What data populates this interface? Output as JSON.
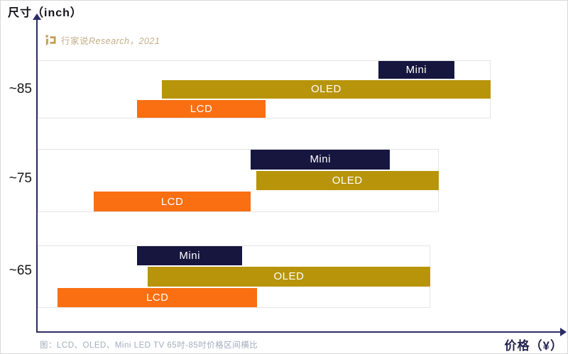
{
  "y_axis_title": "尺寸（inch）",
  "x_axis_title": "价格（¥）",
  "watermark": {
    "brand": "行家说",
    "suffix": "Research，2021"
  },
  "caption": "图：LCD、OLED、Mini LED TV 65吋-85吋价格区间横比",
  "colors": {
    "mini": "#16163f",
    "oled": "#b7940a",
    "lcd": "#f96f12",
    "axis": "#2c2c63",
    "watermark_gold": "#c59f55"
  },
  "chart_data": {
    "type": "bar",
    "subtype": "horizontal-range-bars",
    "title": "LCD / OLED / Mini LED TV price range comparison by screen size",
    "xlabel": "价格（¥）",
    "ylabel": "尺寸（inch）",
    "categories": [
      "~85",
      "~75",
      "~65"
    ],
    "series_order": [
      "Mini",
      "OLED",
      "LCD"
    ],
    "x_axis": {
      "tick_labels": "none shown",
      "units": "relative position, % of price axis length (axis has no numeric ticks)"
    },
    "groups": [
      {
        "size": "~85",
        "bars": [
          {
            "name": "Mini",
            "color_key": "mini",
            "range_pct": [
              64.4,
              78.8
            ]
          },
          {
            "name": "OLED",
            "color_key": "oled",
            "range_pct": [
              23.5,
              85.6
            ]
          },
          {
            "name": "LCD",
            "color_key": "lcd",
            "range_pct": [
              18.8,
              43.1
            ]
          }
        ]
      },
      {
        "size": "~75",
        "bars": [
          {
            "name": "Mini",
            "color_key": "mini",
            "range_pct": [
              40.3,
              66.6
            ]
          },
          {
            "name": "OLED",
            "color_key": "oled",
            "range_pct": [
              41.3,
              75.8
            ]
          },
          {
            "name": "LCD",
            "color_key": "lcd",
            "range_pct": [
              10.6,
              40.3
            ]
          }
        ]
      },
      {
        "size": "~65",
        "bars": [
          {
            "name": "Mini",
            "color_key": "mini",
            "range_pct": [
              18.8,
              38.7
            ]
          },
          {
            "name": "OLED",
            "color_key": "oled",
            "range_pct": [
              20.8,
              74.2
            ]
          },
          {
            "name": "LCD",
            "color_key": "lcd",
            "range_pct": [
              3.8,
              41.5
            ]
          }
        ]
      }
    ],
    "legend": "labels printed inside bars",
    "grid": false
  }
}
